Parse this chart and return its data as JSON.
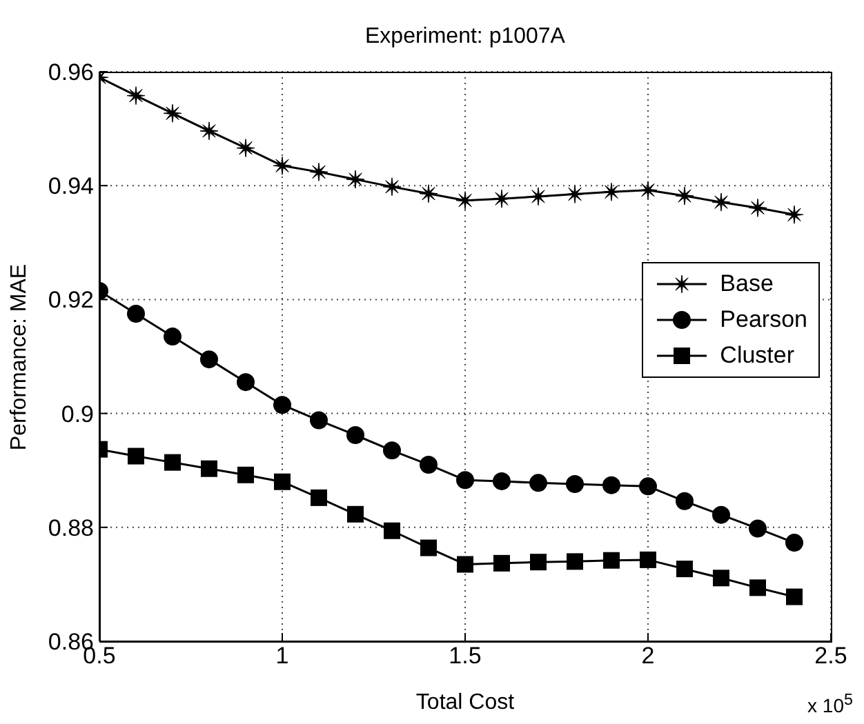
{
  "chart_data": {
    "type": "line",
    "title": "Experiment: p1007A",
    "xlabel": "Total Cost",
    "ylabel": "Performance: MAE",
    "annotations": [
      "x 10$^{5}$"
    ],
    "x": [
      0.5,
      0.6,
      0.7,
      0.8,
      0.9,
      1.0,
      1.1,
      1.2,
      1.3,
      1.4,
      1.5,
      1.6,
      1.7,
      1.8,
      1.9,
      2.0,
      2.1,
      2.2,
      2.3,
      2.4
    ],
    "series": [
      {
        "name": "Base",
        "color": "#000000",
        "marker": "star",
        "values": [
          0.959,
          0.9558,
          0.9527,
          0.9496,
          0.9466,
          0.9435,
          0.9424,
          0.9411,
          0.9398,
          0.9386,
          0.9374,
          0.9377,
          0.9381,
          0.9385,
          0.9389,
          0.9392,
          0.9382,
          0.9371,
          0.9361,
          0.9349
        ]
      },
      {
        "name": "Pearson",
        "color": "#000000",
        "marker": "circle",
        "values": [
          0.9215,
          0.9175,
          0.9135,
          0.9095,
          0.9055,
          0.9015,
          0.8988,
          0.8962,
          0.8935,
          0.891,
          0.8883,
          0.8881,
          0.8878,
          0.8876,
          0.8874,
          0.8872,
          0.8846,
          0.8822,
          0.8798,
          0.8773
        ]
      },
      {
        "name": "Cluster",
        "color": "#000000",
        "marker": "square",
        "values": [
          0.8937,
          0.8925,
          0.8914,
          0.8903,
          0.8892,
          0.888,
          0.8852,
          0.8823,
          0.8794,
          0.8764,
          0.8735,
          0.8737,
          0.8739,
          0.874,
          0.8742,
          0.8743,
          0.8727,
          0.8711,
          0.8694,
          0.8678
        ]
      }
    ],
    "xlim": [
      0.5,
      2.5
    ],
    "xticks": [
      0.5,
      1,
      1.5,
      2,
      2.5
    ],
    "ylim": [
      0.86,
      0.96
    ],
    "yticks": [
      0.86,
      0.88,
      0.9,
      0.92,
      0.94,
      0.96
    ],
    "grid": true,
    "legend": "right",
    "line_style": "solid"
  }
}
